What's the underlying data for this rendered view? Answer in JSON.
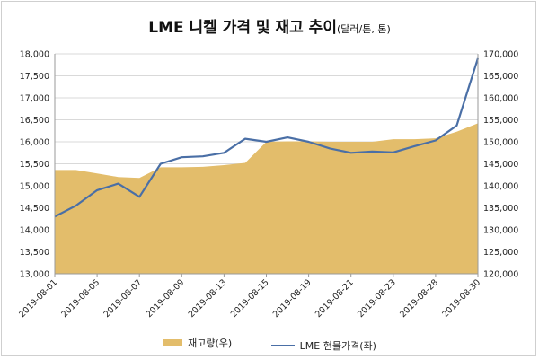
{
  "chart_data": {
    "type": "area+line",
    "title": "LME 니켈 가격 및 재고 추이",
    "title_unit": "(달러/톤, 톤)",
    "categories": [
      "2019-08-01",
      "2019-08-05",
      "2019-08-07",
      "2019-08-09",
      "2019-08-13",
      "2019-08-15",
      "2019-08-19",
      "2019-08-21",
      "2019-08-23",
      "2019-08-28",
      "2019-08-30"
    ],
    "left_axis": {
      "min": 13000,
      "max": 18000,
      "ticks": [
        "13,000",
        "13,500",
        "14,000",
        "14,500",
        "15,000",
        "15,500",
        "16,000",
        "16,500",
        "17,000",
        "17,500",
        "18,000"
      ]
    },
    "right_axis": {
      "min": 120000,
      "max": 170000,
      "ticks": [
        "120,000",
        "125,000",
        "130,000",
        "135,000",
        "140,000",
        "145,000",
        "150,000",
        "155,000",
        "160,000",
        "165,000",
        "170,000"
      ]
    },
    "series": [
      {
        "name": "재고량(우)",
        "kind": "area",
        "axis": "right",
        "color": "#e3bd6b",
        "x": [
          0,
          1,
          2,
          3,
          4,
          5,
          6,
          7,
          8,
          9,
          10,
          11,
          12,
          13,
          14,
          15,
          16,
          17,
          18,
          19,
          20
        ],
        "values": [
          143600,
          143600,
          142800,
          142000,
          141800,
          144200,
          144200,
          144300,
          144700,
          145200,
          150000,
          150100,
          150100,
          150000,
          150000,
          150000,
          150600,
          150600,
          150800,
          152300,
          154200
        ]
      },
      {
        "name": "LME 현물가격(좌)",
        "kind": "line",
        "axis": "left",
        "color": "#4a6fa6",
        "x": [
          0,
          1,
          2,
          3,
          4,
          5,
          6,
          7,
          8,
          9,
          10,
          11,
          12,
          13,
          14,
          15,
          16,
          17,
          18,
          19,
          20
        ],
        "values": [
          14300,
          14550,
          14900,
          15050,
          14750,
          15500,
          15650,
          15670,
          15750,
          16070,
          16000,
          16100,
          16000,
          15850,
          15750,
          15780,
          15760,
          15900,
          16030,
          16370,
          17900
        ]
      }
    ],
    "legend": [
      "재고량(우)",
      "LME 현물가격(좌)"
    ],
    "legend_position": "bottom"
  }
}
